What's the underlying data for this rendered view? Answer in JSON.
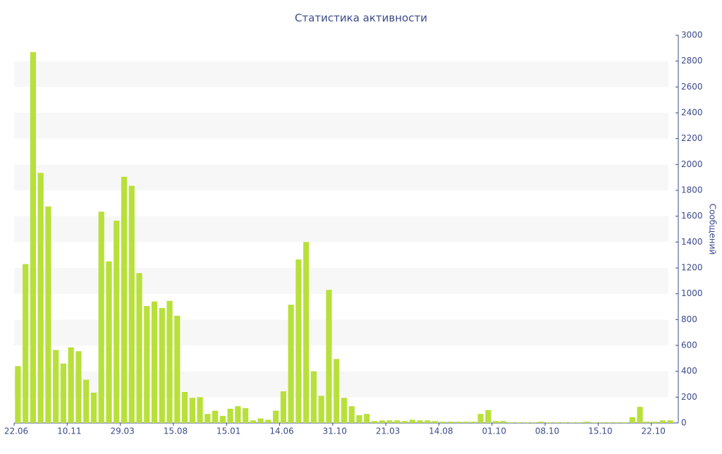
{
  "chart_data": {
    "type": "bar",
    "title": "Статистика активности",
    "y_label": "Сообщений",
    "categories": [
      "22.06",
      null,
      null,
      null,
      null,
      null,
      null,
      "10.11",
      null,
      null,
      null,
      null,
      null,
      null,
      "29.03",
      null,
      null,
      null,
      null,
      null,
      null,
      "15.08",
      null,
      null,
      null,
      null,
      null,
      null,
      "15.01",
      null,
      null,
      null,
      null,
      null,
      null,
      "14.06",
      null,
      null,
      null,
      null,
      null,
      null,
      "31.10",
      null,
      null,
      null,
      null,
      null,
      null,
      "21.03",
      null,
      null,
      null,
      null,
      null,
      null,
      "14.08",
      null,
      null,
      null,
      null,
      null,
      null,
      "01.10",
      null,
      null,
      null,
      null,
      null,
      null,
      "08.10",
      null,
      null,
      null,
      null,
      null,
      null,
      "15.10",
      null,
      null,
      null,
      null,
      null,
      null,
      "22.10",
      null,
      null
    ],
    "values": [
      440,
      1230,
      2870,
      1935,
      1675,
      565,
      460,
      585,
      555,
      335,
      235,
      1635,
      1250,
      1565,
      1905,
      1835,
      1160,
      905,
      940,
      890,
      945,
      830,
      240,
      195,
      200,
      70,
      95,
      55,
      110,
      130,
      115,
      20,
      35,
      25,
      95,
      245,
      915,
      1265,
      1400,
      400,
      210,
      1030,
      495,
      195,
      130,
      60,
      70,
      15,
      20,
      20,
      20,
      15,
      25,
      20,
      20,
      15,
      10,
      10,
      10,
      10,
      10,
      70,
      100,
      15,
      15,
      5,
      5,
      5,
      5,
      10,
      5,
      5,
      5,
      5,
      5,
      10,
      5,
      5,
      5,
      5,
      5,
      45,
      125,
      10,
      10,
      20,
      20
    ],
    "color": "#b8e03a",
    "ylim": [
      0,
      3000
    ],
    "yticks": [
      0,
      200,
      400,
      600,
      800,
      1000,
      1200,
      1400,
      1600,
      1800,
      2000,
      2200,
      2400,
      2600,
      2800,
      3000
    ],
    "grid": true
  }
}
